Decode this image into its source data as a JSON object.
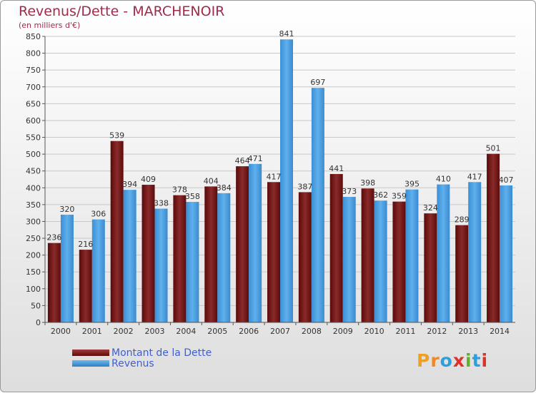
{
  "title": "Revenus/Dette - MARCHENOIR",
  "subtitle": "(en milliers d'€)",
  "colors": {
    "dette": "#7a1a1a",
    "revenus": "#4ea3e3",
    "title": "#9e2b4a",
    "legend_text": "#3f5fd0"
  },
  "legend": {
    "dette_label": "Montant de la Dette",
    "revenus_label": "Revenus"
  },
  "logo": {
    "letters": [
      "P",
      "r",
      "o",
      "x",
      "i",
      "t",
      "i"
    ],
    "colors": [
      "#f0a020",
      "#f08a20",
      "#2aa0e0",
      "#e0302a",
      "#60b030",
      "#2aa0e0",
      "#e0302a"
    ]
  },
  "chart_data": {
    "type": "bar",
    "title": "Revenus/Dette - MARCHENOIR",
    "ylabel": "(en milliers d'€)",
    "xlabel": "",
    "categories": [
      "2000",
      "2001",
      "2002",
      "2003",
      "2004",
      "2005",
      "2006",
      "2007",
      "2008",
      "2009",
      "2010",
      "2011",
      "2012",
      "2013",
      "2014"
    ],
    "series": [
      {
        "name": "Montant de la Dette",
        "values": [
          236,
          216,
          539,
          409,
          378,
          404,
          464,
          417,
          387,
          441,
          398,
          359,
          324,
          289,
          501
        ]
      },
      {
        "name": "Revenus",
        "values": [
          320,
          306,
          394,
          338,
          358,
          384,
          471,
          841,
          697,
          373,
          362,
          395,
          410,
          417,
          407
        ]
      }
    ],
    "ylim": [
      0,
      850
    ],
    "yticks": [
      0,
      50,
      100,
      150,
      200,
      250,
      300,
      350,
      400,
      450,
      500,
      550,
      600,
      650,
      700,
      750,
      800,
      850
    ],
    "grid": true,
    "legend_position": "bottom-left"
  }
}
